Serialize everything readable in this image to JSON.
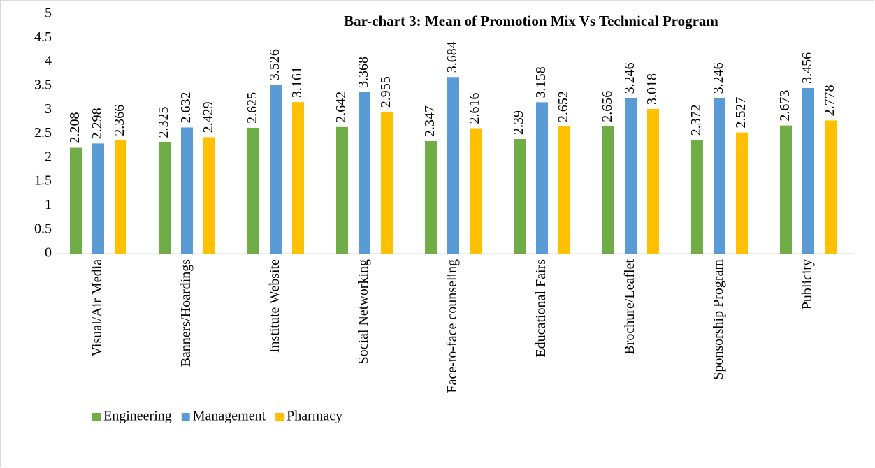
{
  "chart_data": {
    "type": "bar",
    "title": "Bar-chart 3: Mean of Promotion Mix Vs Technical Program",
    "categories": [
      "Visual/Air Media",
      "Banners/Hoardings",
      "Institute Website",
      "Social Networking",
      "Face-to-face counseling",
      "Educational Fairs",
      "Brochure/Leaflet",
      "Sponsorship Program",
      "Publicity"
    ],
    "series": [
      {
        "name": "Engineering",
        "color": "#70ad47",
        "values": [
          2.208,
          2.325,
          2.625,
          2.642,
          2.347,
          2.39,
          2.656,
          2.372,
          2.673
        ]
      },
      {
        "name": "Management",
        "color": "#5b9bd5",
        "values": [
          2.298,
          2.632,
          3.526,
          3.368,
          3.684,
          3.158,
          3.246,
          3.246,
          3.456
        ]
      },
      {
        "name": "Pharmacy",
        "color": "#ffc000",
        "values": [
          2.366,
          2.429,
          3.161,
          2.955,
          2.616,
          2.652,
          3.018,
          2.527,
          2.778
        ]
      }
    ],
    "ylim": [
      0,
      5
    ],
    "yticks": [
      0,
      0.5,
      1,
      1.5,
      2,
      2.5,
      3,
      3.5,
      4,
      4.5,
      5
    ],
    "grid": false,
    "legend": "bottom-left"
  }
}
